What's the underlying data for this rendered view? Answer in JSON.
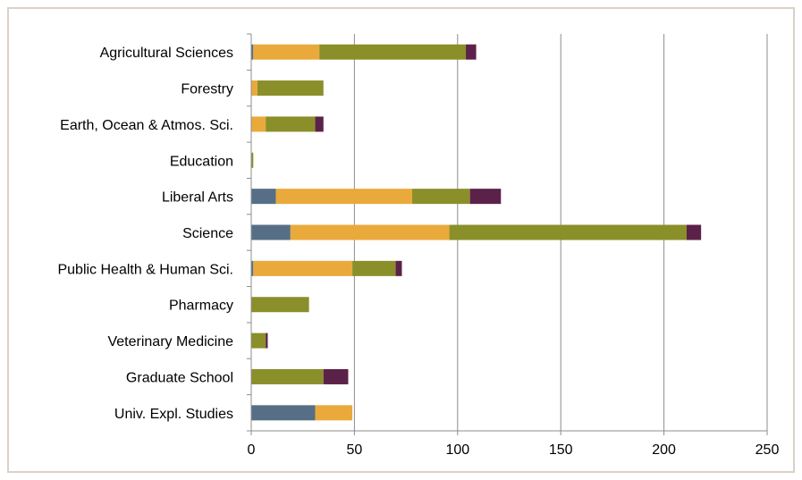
{
  "chart_data": {
    "type": "bar",
    "orientation": "horizontal",
    "stacked": true,
    "title": "",
    "xlabel": "",
    "ylabel": "",
    "xlim": [
      0,
      250
    ],
    "x_ticks": [
      0,
      50,
      100,
      150,
      200,
      250
    ],
    "grid": "vertical",
    "legend": "none",
    "categories": [
      "Agricultural Sciences",
      "Forestry",
      "Earth, Ocean & Atmos. Sci.",
      "Education",
      "Liberal Arts",
      "Science",
      "Public Health & Human Sci.",
      "Pharmacy",
      "Veterinary Medicine",
      "Graduate School",
      "Univ. Expl. Studies"
    ],
    "series": [
      {
        "color": "#566f87",
        "values": [
          1,
          0,
          0,
          0,
          12,
          19,
          1,
          0,
          0,
          0,
          31
        ]
      },
      {
        "color": "#eaa93b",
        "values": [
          32,
          3,
          7,
          0,
          66,
          77,
          48,
          0,
          0,
          0,
          18
        ]
      },
      {
        "color": "#8a8f2a",
        "values": [
          71,
          32,
          24,
          1,
          28,
          115,
          21,
          28,
          7,
          35,
          0
        ]
      },
      {
        "color": "#5c2149",
        "values": [
          5,
          0,
          4,
          0,
          15,
          7,
          3,
          0,
          1,
          12,
          0
        ]
      }
    ]
  }
}
